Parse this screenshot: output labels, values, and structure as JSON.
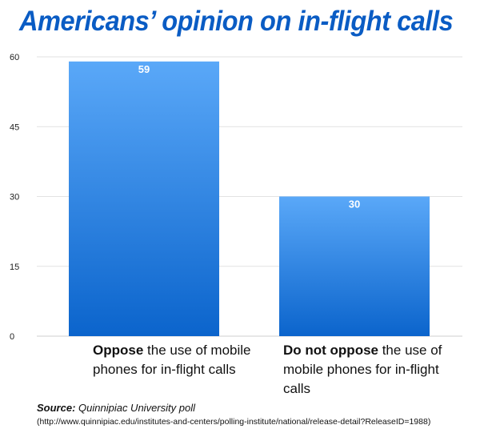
{
  "chart_data": {
    "type": "bar",
    "title": "Americans’ opinion on in-flight calls",
    "categories": [
      {
        "bold": "Oppose",
        "rest": " the use of mobile phones for in-flight calls"
      },
      {
        "bold": "Do not oppose",
        "rest": " the use of mobile phones for in-flight calls"
      }
    ],
    "values": [
      59,
      30
    ],
    "data_labels": [
      "59",
      "30"
    ],
    "yticks": [
      "0",
      "15",
      "30",
      "45",
      "60"
    ],
    "ylim": [
      0,
      60
    ],
    "grid": true,
    "legend": "none"
  },
  "source": {
    "label": "Source:",
    "text": " Quinnipiac University poll",
    "url": "(http://www.quinnipiac.edu/institutes-and-centers/polling-institute/national/release-detail?ReleaseID=1988)"
  },
  "colors": {
    "title": "#0a5cc4",
    "bar_top": "#5aa8f8",
    "bar_bottom": "#0b64cc",
    "grid": "#e2e2e2",
    "axis": "#cfcfcf",
    "bar_label": "#ffffff"
  }
}
